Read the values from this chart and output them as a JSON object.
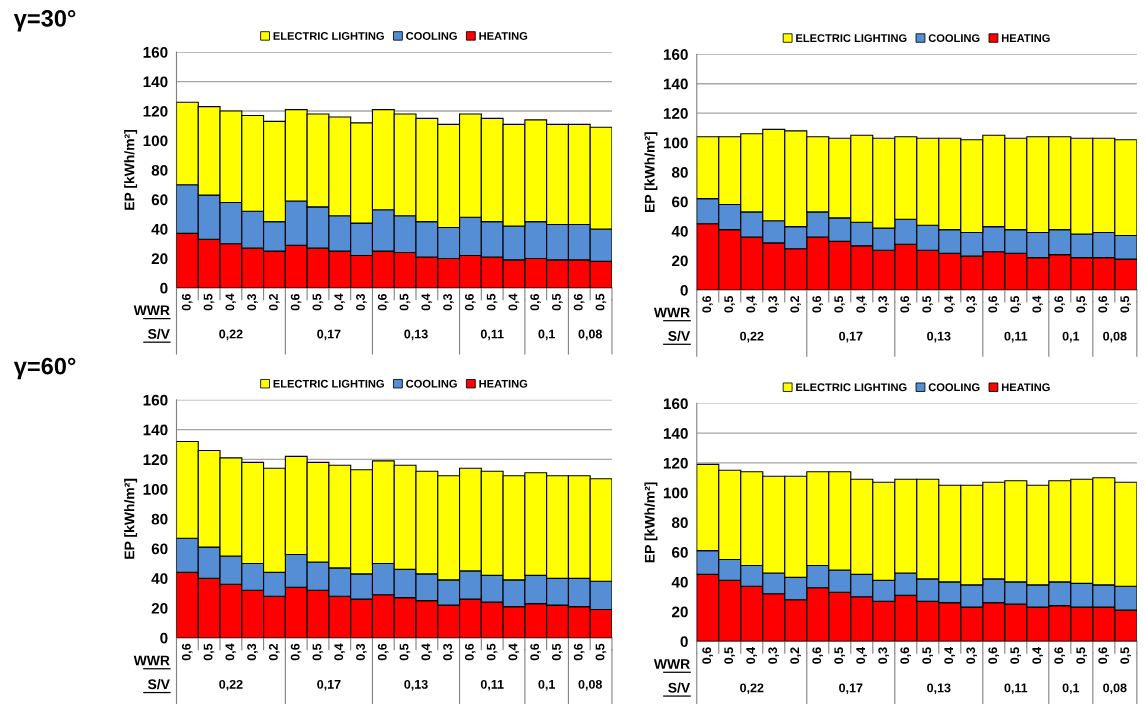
{
  "chart_data": [
    {
      "type": "bar",
      "stacked": true,
      "ylabel": "EP [kWh/m²]",
      "ylim": [
        0,
        160
      ],
      "yticks": [
        0,
        20,
        40,
        60,
        80,
        100,
        120,
        140,
        160
      ],
      "grid": "y",
      "legend": "top",
      "categories": [
        "0,6",
        "0,5",
        "0,4",
        "0,3",
        "0,2",
        "0,6",
        "0,5",
        "0,4",
        "0,3",
        "0,6",
        "0,5",
        "0,4",
        "0,3",
        "0,6",
        "0,5",
        "0,4",
        "0,6",
        "0,5",
        "0,6",
        "0,5"
      ],
      "annotations": [
        "γ=30°",
        "WWR",
        "S/V",
        "0,22",
        "0,17",
        "0,13",
        "0,11",
        "0,1",
        "0,08"
      ],
      "series": [
        {
          "name": "HEATING",
          "color": "#ff0000",
          "values": [
            37,
            33,
            30,
            27,
            25,
            29,
            27,
            25,
            22,
            25,
            24,
            21,
            20,
            22,
            21,
            19,
            20,
            19,
            19,
            18
          ]
        },
        {
          "name": "COOLING",
          "color": "#558ed5",
          "values": [
            33,
            30,
            28,
            25,
            20,
            30,
            28,
            24,
            22,
            28,
            25,
            24,
            21,
            26,
            24,
            23,
            25,
            24,
            24,
            22
          ]
        },
        {
          "name": "ELECTRIC LIGHTING",
          "color": "#ffff00",
          "values": [
            56,
            60,
            62,
            65,
            68,
            62,
            63,
            67,
            68,
            68,
            69,
            70,
            70,
            70,
            70,
            69,
            69,
            68,
            68,
            69
          ]
        }
      ]
    },
    {
      "type": "bar",
      "stacked": true,
      "ylabel": "EP [kWh/m²]",
      "ylim": [
        0,
        160
      ],
      "yticks": [
        0,
        20,
        40,
        60,
        80,
        100,
        120,
        140,
        160
      ],
      "grid": "y",
      "legend": "top",
      "categories": [
        "0,6",
        "0,5",
        "0,4",
        "0,3",
        "0,2",
        "0,6",
        "0,5",
        "0,4",
        "0,3",
        "0,6",
        "0,5",
        "0,4",
        "0,3",
        "0,6",
        "0,5",
        "0,4",
        "0,6",
        "0,5",
        "0,6",
        "0,5"
      ],
      "annotations": [
        "WWR",
        "S/V",
        "0,22",
        "0,17",
        "0,13",
        "0,11",
        "0,1",
        "0,08"
      ],
      "series": [
        {
          "name": "HEATING",
          "color": "#ff0000",
          "values": [
            45,
            41,
            36,
            32,
            28,
            36,
            33,
            30,
            27,
            31,
            27,
            25,
            23,
            26,
            25,
            22,
            24,
            22,
            22,
            21
          ]
        },
        {
          "name": "COOLING",
          "color": "#558ed5",
          "values": [
            17,
            17,
            17,
            15,
            15,
            17,
            16,
            16,
            15,
            17,
            17,
            16,
            16,
            17,
            16,
            17,
            17,
            16,
            17,
            16
          ]
        },
        {
          "name": "ELECTRIC LIGHTING",
          "color": "#ffff00",
          "values": [
            42,
            46,
            53,
            62,
            65,
            51,
            54,
            59,
            61,
            56,
            59,
            62,
            63,
            62,
            62,
            65,
            63,
            65,
            64,
            65
          ]
        }
      ]
    },
    {
      "type": "bar",
      "stacked": true,
      "ylabel": "EP [kWh/m²]",
      "ylim": [
        0,
        160
      ],
      "yticks": [
        0,
        20,
        40,
        60,
        80,
        100,
        120,
        140,
        160
      ],
      "grid": "y",
      "legend": "top",
      "categories": [
        "0,6",
        "0,5",
        "0,4",
        "0,3",
        "0,2",
        "0,6",
        "0,5",
        "0,4",
        "0,3",
        "0,6",
        "0,5",
        "0,4",
        "0,3",
        "0,6",
        "0,5",
        "0,4",
        "0,6",
        "0,5",
        "0,6",
        "0,5"
      ],
      "annotations": [
        "γ=60°",
        "WWR",
        "S/V",
        "0,22",
        "0,17",
        "0,13",
        "0,11",
        "0,1",
        "0,08"
      ],
      "series": [
        {
          "name": "HEATING",
          "color": "#ff0000",
          "values": [
            44,
            40,
            36,
            32,
            28,
            34,
            32,
            28,
            26,
            29,
            27,
            25,
            22,
            26,
            24,
            21,
            23,
            22,
            21,
            19
          ]
        },
        {
          "name": "COOLING",
          "color": "#558ed5",
          "values": [
            23,
            21,
            19,
            18,
            16,
            22,
            19,
            19,
            17,
            21,
            19,
            18,
            17,
            19,
            18,
            18,
            19,
            18,
            19,
            19
          ]
        },
        {
          "name": "ELECTRIC LIGHTING",
          "color": "#ffff00",
          "values": [
            65,
            65,
            66,
            68,
            70,
            66,
            67,
            69,
            70,
            69,
            70,
            69,
            70,
            69,
            70,
            70,
            69,
            69,
            69,
            69
          ]
        }
      ]
    },
    {
      "type": "bar",
      "stacked": true,
      "ylabel": "EP [kWh/m²]",
      "ylim": [
        0,
        160
      ],
      "yticks": [
        0,
        20,
        40,
        60,
        80,
        100,
        120,
        140,
        160
      ],
      "grid": "y",
      "legend": "top",
      "categories": [
        "0,6",
        "0,5",
        "0,4",
        "0,3",
        "0,2",
        "0,6",
        "0,5",
        "0,4",
        "0,3",
        "0,6",
        "0,5",
        "0,4",
        "0,3",
        "0,6",
        "0,5",
        "0,4",
        "0,6",
        "0,5",
        "0,6",
        "0,5"
      ],
      "annotations": [
        "WWR",
        "S/V",
        "0,22",
        "0,17",
        "0,13",
        "0,11",
        "0,1",
        "0,08"
      ],
      "series": [
        {
          "name": "HEATING",
          "color": "#ff0000",
          "values": [
            45,
            41,
            37,
            32,
            28,
            36,
            33,
            30,
            27,
            31,
            27,
            26,
            23,
            26,
            25,
            23,
            24,
            23,
            23,
            21
          ]
        },
        {
          "name": "COOLING",
          "color": "#558ed5",
          "values": [
            16,
            14,
            14,
            14,
            15,
            15,
            15,
            15,
            14,
            15,
            15,
            14,
            15,
            16,
            15,
            15,
            16,
            16,
            15,
            16
          ]
        },
        {
          "name": "ELECTRIC LIGHTING",
          "color": "#ffff00",
          "values": [
            58,
            60,
            63,
            65,
            68,
            63,
            66,
            64,
            66,
            63,
            67,
            65,
            67,
            65,
            68,
            67,
            68,
            70,
            72,
            70
          ]
        }
      ]
    }
  ]
}
